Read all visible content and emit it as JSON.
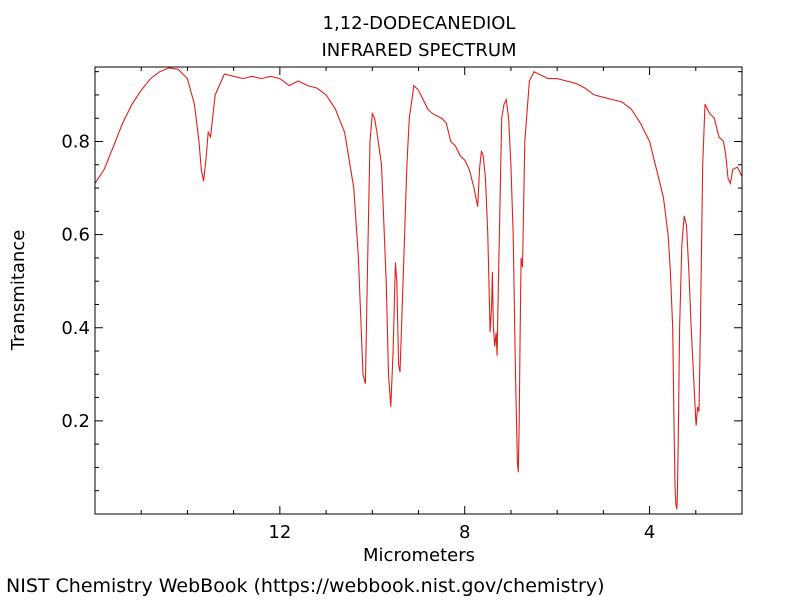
{
  "footer": "NIST Chemistry WebBook (https://webbook.nist.gov/chemistry)",
  "chart_data": {
    "type": "line",
    "title": "1,12-DODECANEDIOL",
    "subtitle": "INFRARED SPECTRUM",
    "xlabel": "Micrometers",
    "ylabel": "Transmitance",
    "xlim": [
      16,
      2
    ],
    "ylim": [
      0,
      0.96
    ],
    "xticks": [
      12,
      8,
      4
    ],
    "yticks": [
      0.2,
      0.4,
      0.6,
      0.8
    ],
    "grid": false,
    "line_color": "#e0201c",
    "series": [
      {
        "x": [
          16.0,
          15.8,
          15.6,
          15.4,
          15.2,
          15.0,
          14.8,
          14.6,
          14.4,
          14.2,
          14.0,
          13.85,
          13.75,
          13.7,
          13.65,
          13.6,
          13.55,
          13.5,
          13.4,
          13.2,
          13.0,
          12.8,
          12.6,
          12.4,
          12.2,
          12.0,
          11.8,
          11.6,
          11.4,
          11.2,
          11.0,
          10.8,
          10.6,
          10.4,
          10.3,
          10.2,
          10.15,
          10.1,
          10.05,
          10.0,
          9.95,
          9.9,
          9.8,
          9.7,
          9.65,
          9.6,
          9.55,
          9.5,
          9.47,
          9.43,
          9.4,
          9.35,
          9.3,
          9.25,
          9.2,
          9.1,
          9.0,
          8.9,
          8.8,
          8.7,
          8.6,
          8.5,
          8.4,
          8.3,
          8.2,
          8.1,
          8.0,
          7.9,
          7.8,
          7.72,
          7.68,
          7.64,
          7.6,
          7.55,
          7.5,
          7.45,
          7.42,
          7.4,
          7.38,
          7.35,
          7.32,
          7.3,
          7.28,
          7.2,
          7.15,
          7.1,
          7.05,
          7.0,
          6.95,
          6.9,
          6.86,
          6.84,
          6.82,
          6.8,
          6.78,
          6.75,
          6.7,
          6.6,
          6.5,
          6.4,
          6.3,
          6.2,
          6.0,
          5.8,
          5.6,
          5.4,
          5.2,
          5.0,
          4.8,
          4.6,
          4.4,
          4.2,
          4.0,
          3.8,
          3.7,
          3.6,
          3.55,
          3.5,
          3.47,
          3.45,
          3.43,
          3.42,
          3.41,
          3.4,
          3.38,
          3.35,
          3.3,
          3.25,
          3.2,
          3.15,
          3.1,
          3.05,
          3.0,
          2.99,
          2.96,
          2.93,
          2.9,
          2.85,
          2.8,
          2.75,
          2.7,
          2.6,
          2.5,
          2.4,
          2.35,
          2.3,
          2.25,
          2.2,
          2.1,
          2.0
        ],
        "y": [
          0.71,
          0.74,
          0.79,
          0.84,
          0.88,
          0.91,
          0.935,
          0.95,
          0.958,
          0.955,
          0.935,
          0.88,
          0.8,
          0.74,
          0.715,
          0.76,
          0.82,
          0.81,
          0.9,
          0.945,
          0.94,
          0.935,
          0.94,
          0.935,
          0.94,
          0.935,
          0.92,
          0.93,
          0.92,
          0.915,
          0.9,
          0.87,
          0.82,
          0.7,
          0.55,
          0.3,
          0.28,
          0.55,
          0.8,
          0.86,
          0.85,
          0.82,
          0.75,
          0.5,
          0.3,
          0.23,
          0.35,
          0.54,
          0.5,
          0.32,
          0.305,
          0.45,
          0.6,
          0.75,
          0.85,
          0.92,
          0.91,
          0.89,
          0.87,
          0.86,
          0.855,
          0.85,
          0.84,
          0.8,
          0.79,
          0.77,
          0.76,
          0.74,
          0.7,
          0.66,
          0.74,
          0.78,
          0.77,
          0.72,
          0.6,
          0.39,
          0.44,
          0.52,
          0.4,
          0.36,
          0.39,
          0.34,
          0.45,
          0.85,
          0.88,
          0.89,
          0.85,
          0.75,
          0.6,
          0.3,
          0.11,
          0.09,
          0.2,
          0.4,
          0.55,
          0.53,
          0.8,
          0.93,
          0.95,
          0.945,
          0.94,
          0.935,
          0.935,
          0.93,
          0.925,
          0.915,
          0.9,
          0.895,
          0.89,
          0.885,
          0.87,
          0.84,
          0.8,
          0.72,
          0.68,
          0.6,
          0.52,
          0.4,
          0.18,
          0.06,
          0.02,
          0.015,
          0.01,
          0.03,
          0.15,
          0.4,
          0.58,
          0.64,
          0.62,
          0.52,
          0.4,
          0.3,
          0.2,
          0.19,
          0.23,
          0.22,
          0.4,
          0.75,
          0.88,
          0.87,
          0.86,
          0.85,
          0.81,
          0.8,
          0.77,
          0.72,
          0.71,
          0.74,
          0.745,
          0.725
        ]
      }
    ]
  }
}
